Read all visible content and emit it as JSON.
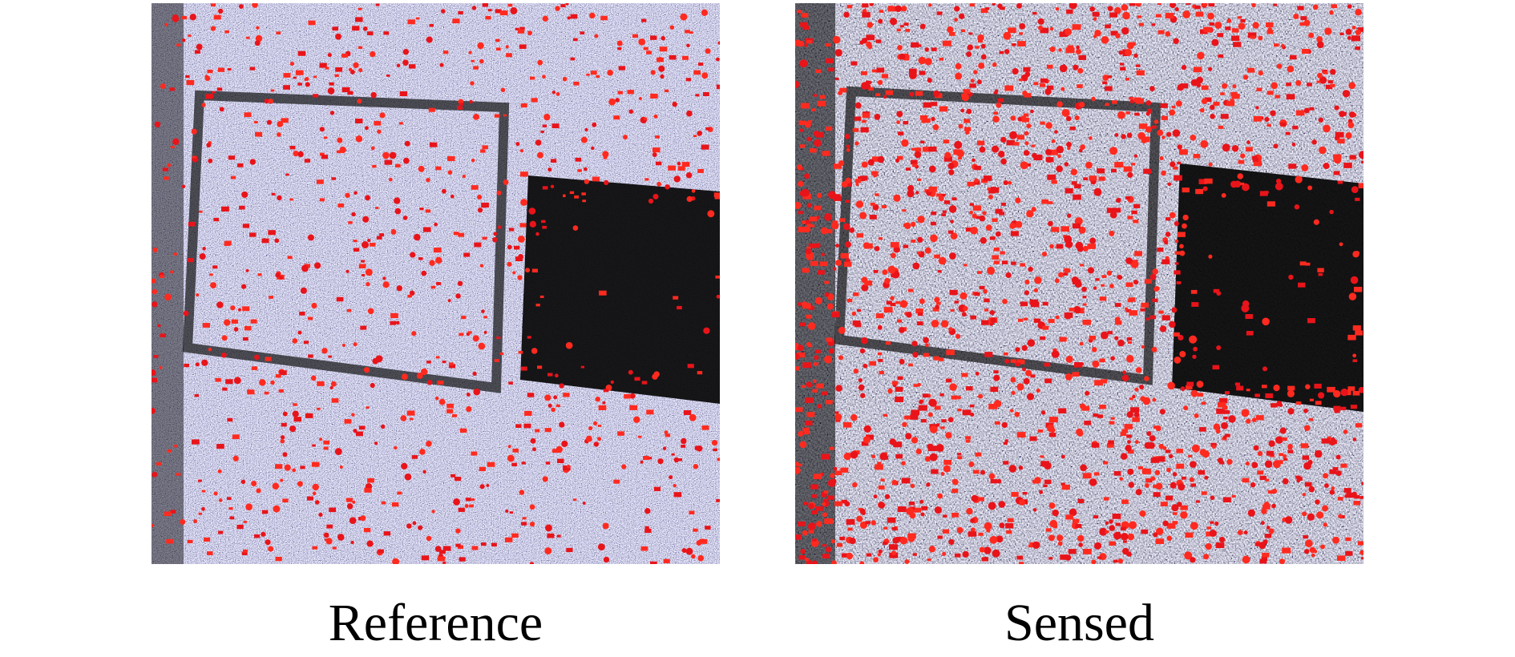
{
  "panels": [
    {
      "caption": "Reference"
    },
    {
      "caption": "Sensed"
    }
  ]
}
